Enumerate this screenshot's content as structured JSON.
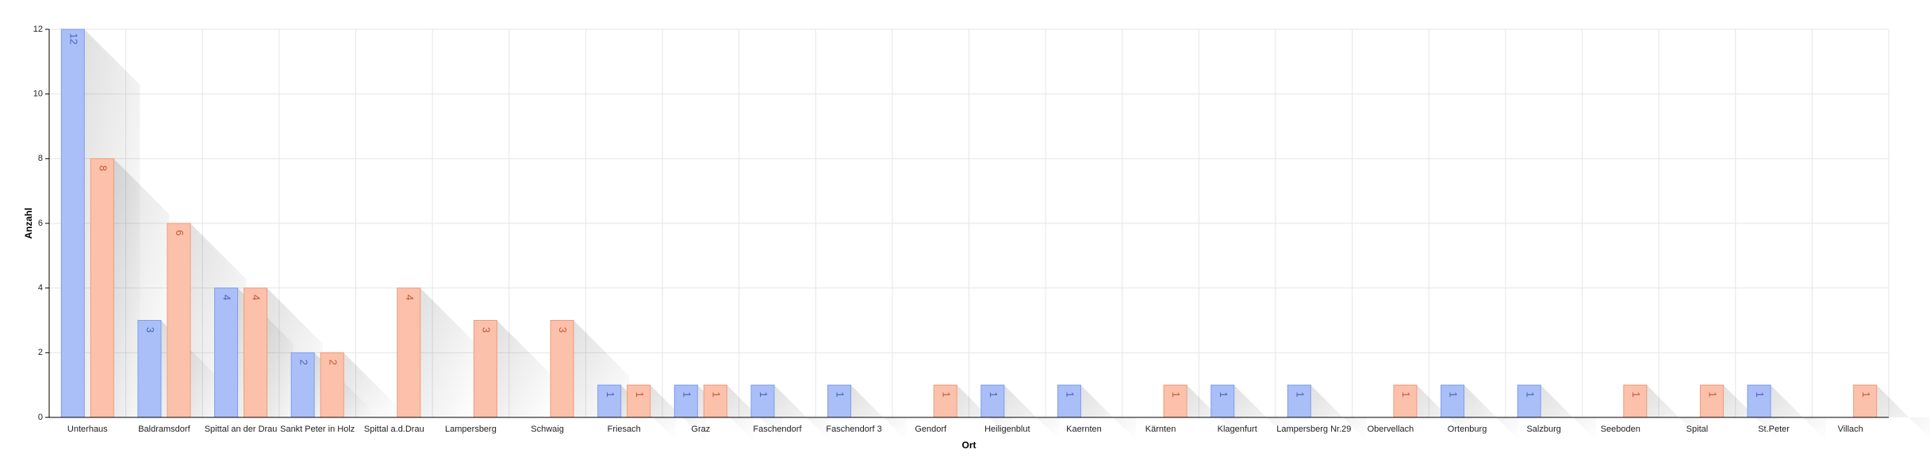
{
  "chart_data": {
    "type": "bar",
    "xlabel": "Ort",
    "ylabel": "Anzahl",
    "ylim": [
      0,
      12
    ],
    "yticks": [
      "0",
      "2",
      "4",
      "6",
      "8",
      "10",
      "12"
    ],
    "grid": true,
    "categories": [
      "Unterhaus",
      "Baldramsdorf",
      "Spittal an der Drau",
      "Sankt Peter in Holz",
      "Spittal a.d.Drau",
      "Lampersberg",
      "Schwaig",
      "Friesach",
      "Graz",
      "Faschendorf",
      "Faschendorf 3",
      "Gendorf",
      "Heiligenblut",
      "Kaernten",
      "Kärnten",
      "Klagenfurt",
      "Lampersberg Nr.29",
      "Obervellach",
      "Ortenburg",
      "Salzburg",
      "Seeboden",
      "Spital",
      "St.Peter",
      "Villach"
    ],
    "series": [
      {
        "values": [
          12,
          3,
          4,
          2,
          0,
          0,
          0,
          1,
          1,
          1,
          1,
          0,
          1,
          1,
          0,
          1,
          1,
          0,
          1,
          1,
          0,
          0,
          1,
          0
        ],
        "color": "#aabff7",
        "stroke": "#7f9cf0",
        "label_color": "#4a63b8"
      },
      {
        "values": [
          8,
          6,
          4,
          2,
          4,
          3,
          3,
          1,
          1,
          0,
          0,
          1,
          0,
          0,
          1,
          0,
          0,
          1,
          0,
          0,
          1,
          1,
          0,
          1
        ],
        "color": "#fcc1aa",
        "stroke": "#f29a7a",
        "label_color": "#c0593a"
      }
    ]
  }
}
